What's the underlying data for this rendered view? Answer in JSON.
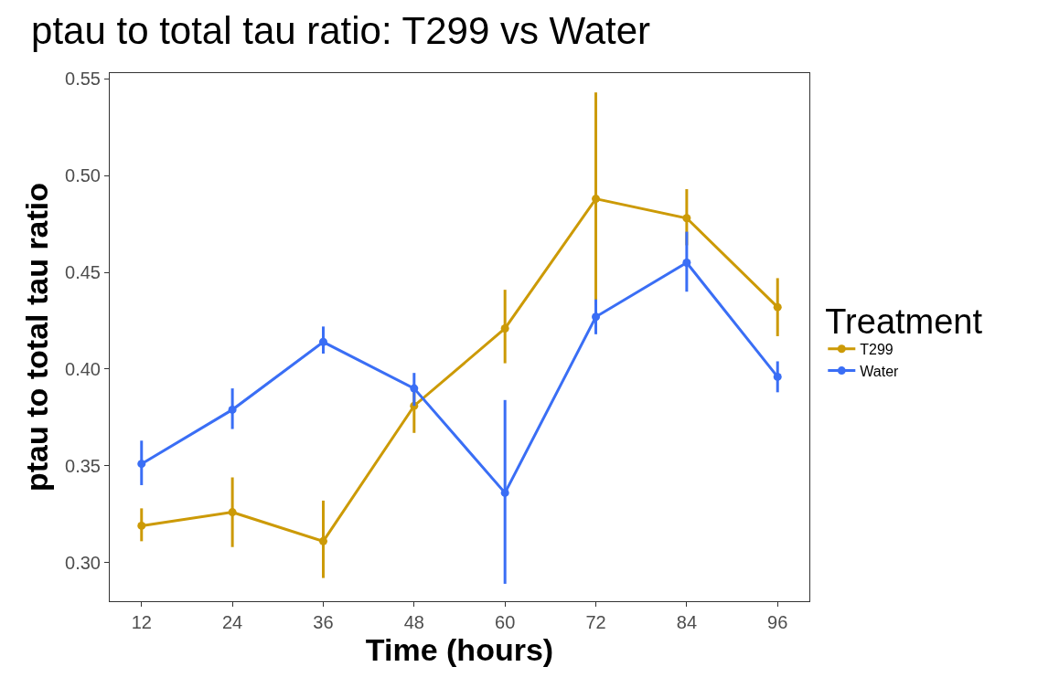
{
  "chart_data": {
    "type": "line",
    "title": "ptau to total tau ratio: T299 vs Water",
    "xlabel": "Time (hours)",
    "ylabel": "ptau to total tau ratio",
    "legend_title": "Treatment",
    "x": [
      12,
      24,
      36,
      48,
      60,
      72,
      84,
      96
    ],
    "series": [
      {
        "name": "T299",
        "color": "#cc9a06",
        "values": [
          0.319,
          0.326,
          0.311,
          0.381,
          0.421,
          0.488,
          0.478,
          0.432
        ],
        "errors": [
          [
            0.311,
            0.328
          ],
          [
            0.308,
            0.344
          ],
          [
            0.292,
            0.332
          ],
          [
            0.367,
            0.389
          ],
          [
            0.403,
            0.441
          ],
          [
            0.433,
            0.543
          ],
          [
            0.464,
            0.493
          ],
          [
            0.417,
            0.447
          ]
        ]
      },
      {
        "name": "Water",
        "color": "#3a6ef5",
        "values": [
          0.351,
          0.379,
          0.414,
          0.39,
          0.336,
          0.427,
          0.455,
          0.396
        ],
        "errors": [
          [
            0.34,
            0.363
          ],
          [
            0.369,
            0.39
          ],
          [
            0.408,
            0.422
          ],
          [
            0.381,
            0.398
          ],
          [
            0.289,
            0.384
          ],
          [
            0.418,
            0.436
          ],
          [
            0.44,
            0.471
          ],
          [
            0.388,
            0.404
          ]
        ]
      }
    ],
    "xlim": [
      7.8,
      100.2
    ],
    "xticks": [
      12,
      24,
      36,
      48,
      60,
      72,
      84,
      96
    ],
    "ylim": [
      0.28,
      0.553
    ],
    "yticks": [
      {
        "value": 0.3,
        "label": "0.30"
      },
      {
        "value": 0.35,
        "label": "0.35"
      },
      {
        "value": 0.4,
        "label": "0.40"
      },
      {
        "value": 0.45,
        "label": "0.45"
      },
      {
        "value": 0.5,
        "label": "0.50"
      },
      {
        "value": 0.55,
        "label": "0.55"
      }
    ],
    "legend": "right",
    "marker": "circle",
    "line_style": "solid"
  }
}
